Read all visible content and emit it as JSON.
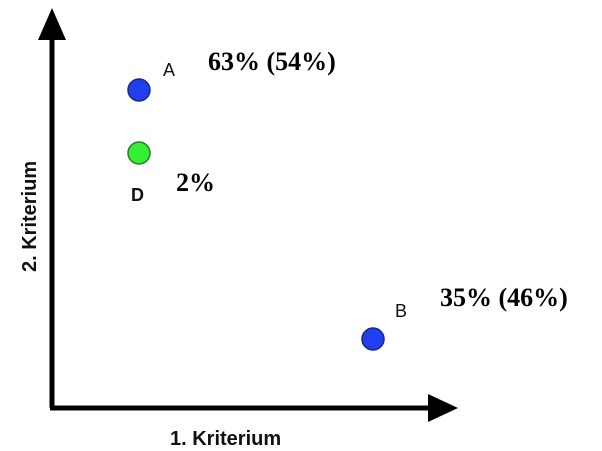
{
  "axes": {
    "x_title": "1. Kriterium",
    "y_title": "2. Kriterium"
  },
  "points": [
    {
      "label": "A",
      "percent": "63% (54%)",
      "color": "#1f3ff0"
    },
    {
      "label": "D",
      "percent": "2%",
      "color": "#33ee33"
    },
    {
      "label": "B",
      "percent": "35% (46%)",
      "color": "#1f3ff0"
    }
  ],
  "colors": {
    "axis": "#000000",
    "point_stroke": "#1a2a7a",
    "green_stroke": "#2a7a2a"
  }
}
